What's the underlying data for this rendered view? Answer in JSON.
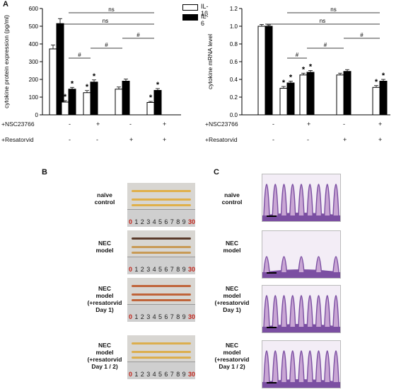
{
  "panels": {
    "a": "A",
    "b": "B",
    "c": "C"
  },
  "chart_data": [
    {
      "type": "bar",
      "ylabel": "cytokine protein expression (pg/ml)",
      "ylim": [
        0,
        600
      ],
      "yticks": [
        0,
        100,
        200,
        300,
        400,
        500,
        600
      ],
      "groups": 5,
      "series": [
        {
          "name": "IL-1β",
          "values": [
            372,
            72,
            125,
            145,
            70
          ],
          "errors": [
            22,
            8,
            12,
            12,
            6
          ]
        },
        {
          "name": "IL-6",
          "values": [
            515,
            145,
            185,
            190,
            138
          ],
          "errors": [
            28,
            10,
            12,
            12,
            10
          ]
        }
      ],
      "sig_marks": [
        [
          false,
          false
        ],
        [
          true,
          true
        ],
        [
          true,
          true
        ],
        [
          false,
          false
        ],
        [
          true,
          true
        ]
      ],
      "comparisons": [
        {
          "from": 1,
          "to": 4,
          "label": "ns"
        },
        {
          "from": 1,
          "to": 4,
          "label": "ns"
        },
        {
          "from": 1,
          "to": 2,
          "label": "#"
        },
        {
          "from": 2,
          "to": 3,
          "label": "#"
        },
        {
          "from": 3,
          "to": 4,
          "label": "#"
        }
      ],
      "legend": "top-right"
    },
    {
      "type": "bar",
      "ylabel": "cytokine mRNA level",
      "ylim": [
        0,
        1.2
      ],
      "yticks": [
        0.0,
        0.2,
        0.4,
        0.6,
        0.8,
        1.0,
        1.2
      ],
      "groups": 5,
      "series": [
        {
          "name": "IL-1β",
          "values": [
            1.0,
            0.3,
            0.45,
            0.45,
            0.31
          ],
          "errors": [
            0.02,
            0.02,
            0.02,
            0.02,
            0.02
          ]
        },
        {
          "name": "IL-6",
          "values": [
            1.0,
            0.36,
            0.48,
            0.49,
            0.38
          ],
          "errors": [
            0.015,
            0.02,
            0.02,
            0.02,
            0.02
          ]
        }
      ],
      "sig_marks": [
        [
          false,
          false
        ],
        [
          true,
          true
        ],
        [
          true,
          true
        ],
        [
          false,
          false
        ],
        [
          true,
          true
        ]
      ],
      "comparisons": [
        {
          "from": 1,
          "to": 4,
          "label": "ns"
        },
        {
          "from": 1,
          "to": 4,
          "label": "ns"
        },
        {
          "from": 1,
          "to": 2,
          "label": "#"
        },
        {
          "from": 2,
          "to": 3,
          "label": "#"
        },
        {
          "from": 3,
          "to": 4,
          "label": "#"
        }
      ]
    }
  ],
  "treatments": {
    "nsc_label": "+NSC23766",
    "resatorvid_label": "+Resatorvid",
    "nsc_signs": [
      "-",
      "+",
      "-",
      "+"
    ],
    "resatorvid_signs": [
      "-",
      "-",
      "+",
      "+"
    ]
  },
  "legend": {
    "il1b": "IL-1β",
    "il6": "IL-6"
  },
  "sig": {
    "star": "*"
  },
  "rows": [
    {
      "line1": "naïve",
      "line2": "control",
      "line3": ""
    },
    {
      "line1": "NEC",
      "line2": "model",
      "line3": ""
    },
    {
      "line1": "NEC",
      "line2": "model",
      "line3": "(+resatorvid",
      "line4": "Day 1)"
    },
    {
      "line1": "NEC",
      "line2": "model",
      "line3": "(+resatorvid",
      "line4": "Day 1 / 2)"
    }
  ],
  "ruler": {
    "digits": [
      "0",
      "1",
      "2",
      "3",
      "4",
      "5",
      "6",
      "7",
      "8",
      "9",
      "30"
    ]
  },
  "colors": {
    "il1b_fill": "#ffffff",
    "il6_fill": "#000000",
    "ruler_red": "#c2271d",
    "gut_pale": "#e2b14f",
    "gut_red": "#b04a2c",
    "tissue": "#7b4fa2"
  }
}
